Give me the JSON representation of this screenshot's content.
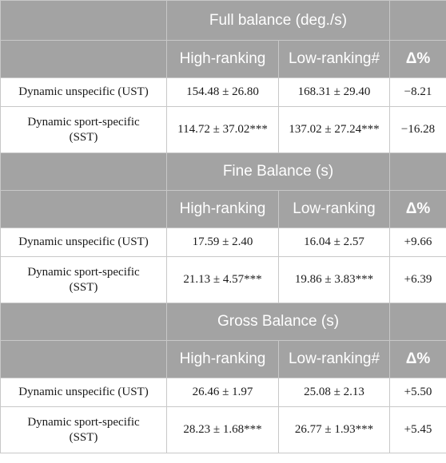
{
  "sections": [
    {
      "title": "Full balance (deg./s)",
      "col_high": "High-ranking",
      "col_low": "Low-ranking#",
      "col_delta": "Δ%",
      "rows": [
        {
          "label": "Dynamic unspecific (UST)",
          "high": "154.48 ± 26.80",
          "low": "168.31 ± 29.40",
          "delta": "−8.21"
        },
        {
          "label": "Dynamic sport-specific (SST)",
          "high": "114.72 ± 37.02***",
          "low": "137.02 ± 27.24***",
          "delta": "−16.28"
        }
      ]
    },
    {
      "title": "Fine Balance (s)",
      "col_high": "High-ranking",
      "col_low": "Low-ranking",
      "col_delta": "Δ%",
      "rows": [
        {
          "label": "Dynamic unspecific (UST)",
          "high": "17.59 ± 2.40",
          "low": "16.04 ± 2.57",
          "delta": "+9.66"
        },
        {
          "label": "Dynamic sport-specific (SST)",
          "high": "21.13 ± 4.57***",
          "low": "19.86 ± 3.83***",
          "delta": "+6.39"
        }
      ]
    },
    {
      "title": "Gross Balance (s)",
      "col_high": "High-ranking",
      "col_low": "Low-ranking#",
      "col_delta": "Δ%",
      "rows": [
        {
          "label": "Dynamic unspecific (UST)",
          "high": "26.46 ± 1.97",
          "low": "25.08 ± 2.13",
          "delta": "+5.50"
        },
        {
          "label": "Dynamic sport-specific (SST)",
          "high": "28.23 ± 1.68***",
          "low": "26.77 ± 1.93***",
          "delta": "+5.45"
        }
      ]
    }
  ]
}
